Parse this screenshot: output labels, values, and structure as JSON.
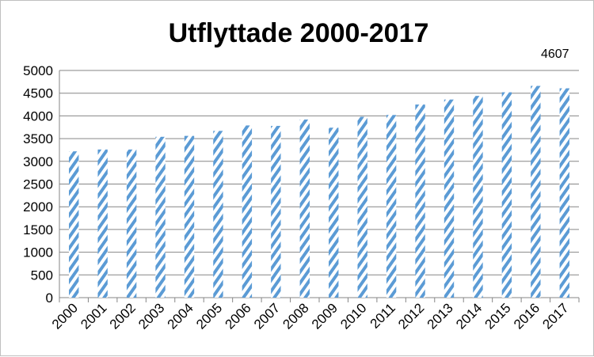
{
  "chart_data": {
    "type": "bar",
    "title": "Utflyttade 2000-2017",
    "xlabel": "",
    "ylabel": "",
    "categories": [
      "2000",
      "2001",
      "2002",
      "2003",
      "2004",
      "2005",
      "2006",
      "2007",
      "2008",
      "2009",
      "2010",
      "2011",
      "2012",
      "2013",
      "2014",
      "2015",
      "2016",
      "2017"
    ],
    "values": [
      3220,
      3260,
      3260,
      3540,
      3560,
      3670,
      3790,
      3780,
      3920,
      3740,
      3980,
      4020,
      4250,
      4360,
      4440,
      4520,
      4660,
      4607
    ],
    "ylim": [
      0,
      5000
    ],
    "yticks": [
      0,
      500,
      1000,
      1500,
      2000,
      2500,
      3000,
      3500,
      4000,
      4500,
      5000
    ],
    "data_labels": [
      {
        "category": "2017",
        "text": "4607"
      }
    ],
    "grid": true,
    "legend": "none",
    "bar_pattern": "diagonal-stripes",
    "bar_color": "#5b9bd5"
  }
}
